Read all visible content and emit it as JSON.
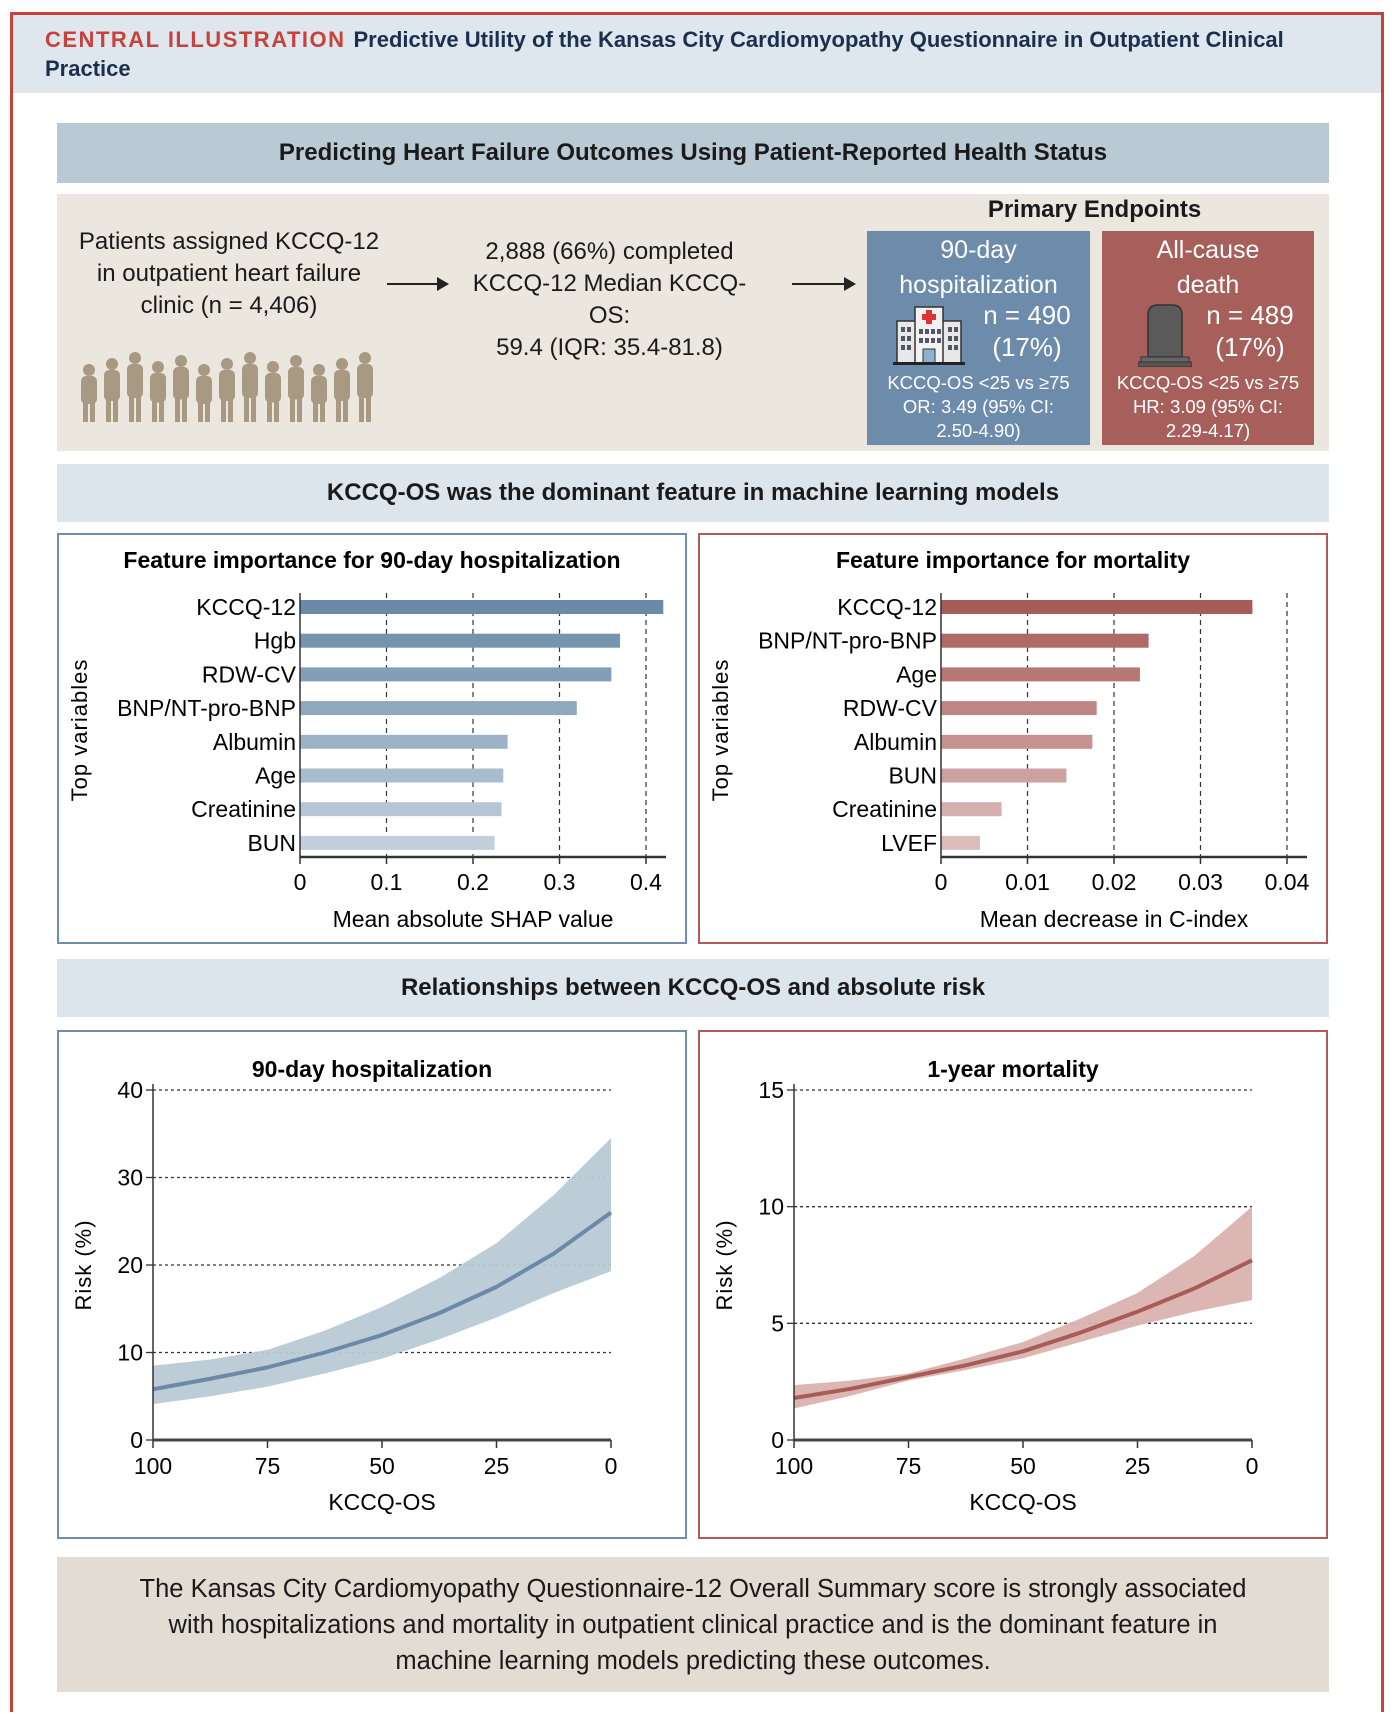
{
  "header": {
    "label": "CENTRAL ILLUSTRATION",
    "title": "Predictive Utility of the Kansas City Cardiomyopathy Questionnaire in Outpatient Clinical Practice"
  },
  "banners": [
    "Predicting Heart Failure Outcomes Using Patient-Reported Health Status",
    "KCCQ-OS was the dominant feature in machine learning models",
    "Relationships between KCCQ-OS and absolute risk"
  ],
  "flow": {
    "patients": [
      "Patients assigned KCCQ-12",
      "in outpatient heart failure",
      "clinic (n = 4,406)"
    ],
    "completed": [
      "2,888 (66%) completed",
      "KCCQ-12 Median KCCQ-OS:",
      "59.4 (IQR: 35.4-81.8)"
    ],
    "endpoints_title": "Primary Endpoints",
    "endpoints": [
      {
        "title": [
          "90-day",
          "hospitalization"
        ],
        "icon": "hospital-icon",
        "n": "n = 490",
        "pct": "(17%)",
        "stats": [
          "KCCQ-OS <25 vs ≥75",
          "OR: 3.49 (95% CI:",
          "2.50-4.90)"
        ],
        "color": "#6d8cab"
      },
      {
        "title": [
          "All-cause",
          "death"
        ],
        "icon": "tombstone-icon",
        "n": "n = 489",
        "pct": "(17%)",
        "stats": [
          "KCCQ-OS <25 vs ≥75",
          "HR: 3.09 (95% CI:",
          "2.29-4.17)"
        ],
        "color": "#a65f5b"
      }
    ],
    "people_icon": "people-silhouettes-icon"
  },
  "chart_data": [
    {
      "type": "bar",
      "orientation": "horizontal",
      "title": "Feature importance for 90-day hospitalization",
      "categories": [
        "KCCQ-12",
        "Hgb",
        "RDW-CV",
        "BNP/NT-pro-BNP",
        "Albumin",
        "Age",
        "Creatinine",
        "BUN"
      ],
      "values": [
        0.42,
        0.37,
        0.36,
        0.32,
        0.24,
        0.235,
        0.233,
        0.225
      ],
      "xlabel": "Mean absolute SHAP value",
      "ylabel": "Top variables",
      "xticks": [
        "0",
        "0.1",
        "0.2",
        "0.3",
        "0.4"
      ],
      "xlim": [
        0,
        0.43
      ],
      "grid": "vertical dashed",
      "color": "#6a8aa8"
    },
    {
      "type": "bar",
      "orientation": "horizontal",
      "title": "Feature importance for mortality",
      "categories": [
        "KCCQ-12",
        "BNP/NT-pro-BNP",
        "Age",
        "RDW-CV",
        "Albumin",
        "BUN",
        "Creatinine",
        "LVEF"
      ],
      "values": [
        0.036,
        0.024,
        0.023,
        0.018,
        0.0175,
        0.0145,
        0.007,
        0.0045
      ],
      "xlabel": "Mean decrease in C-index",
      "ylabel": "Top variables",
      "xticks": [
        "0",
        "0.01",
        "0.02",
        "0.03",
        "0.04"
      ],
      "xlim": [
        0,
        0.043
      ],
      "grid": "vertical dashed",
      "color": "#a85c58"
    },
    {
      "type": "line",
      "title": "90-day hospitalization",
      "xlabel": "KCCQ-OS",
      "ylabel": "Risk (%)",
      "x": [
        100,
        87.5,
        75,
        62.5,
        50,
        37.5,
        25,
        12.5,
        0
      ],
      "y": [
        5.8,
        7.0,
        8.3,
        10.0,
        12.0,
        14.5,
        17.5,
        21.3,
        26.0
      ],
      "lower": [
        4.1,
        5.0,
        6.1,
        7.6,
        9.3,
        11.5,
        14.0,
        16.8,
        19.3
      ],
      "upper": [
        8.5,
        9.2,
        10.3,
        12.5,
        15.2,
        18.5,
        22.5,
        28.0,
        34.5
      ],
      "xlim": [
        100,
        0
      ],
      "ylim": [
        0,
        40
      ],
      "xticks": [
        100,
        75,
        50,
        25,
        0
      ],
      "yticks": [
        0,
        10,
        20,
        30,
        40
      ],
      "grid": "horizontal dotted",
      "color": "#6a8aa8",
      "band_color": "#b9cad5"
    },
    {
      "type": "line",
      "title": "1-year mortality",
      "xlabel": "KCCQ-OS",
      "ylabel": "Risk (%)",
      "x": [
        100,
        87.5,
        75,
        62.5,
        50,
        37.5,
        25,
        12.5,
        0
      ],
      "y": [
        1.8,
        2.2,
        2.7,
        3.2,
        3.8,
        4.6,
        5.5,
        6.5,
        7.7
      ],
      "lower": [
        1.35,
        1.9,
        2.55,
        3.0,
        3.5,
        4.2,
        4.9,
        5.5,
        6.0
      ],
      "upper": [
        2.35,
        2.55,
        2.85,
        3.5,
        4.2,
        5.2,
        6.3,
        7.9,
        10.0
      ],
      "xlim": [
        100,
        0
      ],
      "ylim": [
        0,
        15
      ],
      "xticks": [
        100,
        75,
        50,
        25,
        0
      ],
      "yticks": [
        0,
        5,
        10,
        15
      ],
      "grid": "horizontal dotted",
      "color": "#a85c58",
      "band_color": "#d9b2ae"
    }
  ],
  "summary": "The Kansas City Cardiomyopathy Questionnaire-12 Overall Summary score is strongly associated with hospitalizations and mortality in outpatient clinical practice and is the dominant feature in machine learning models predicting these outcomes."
}
